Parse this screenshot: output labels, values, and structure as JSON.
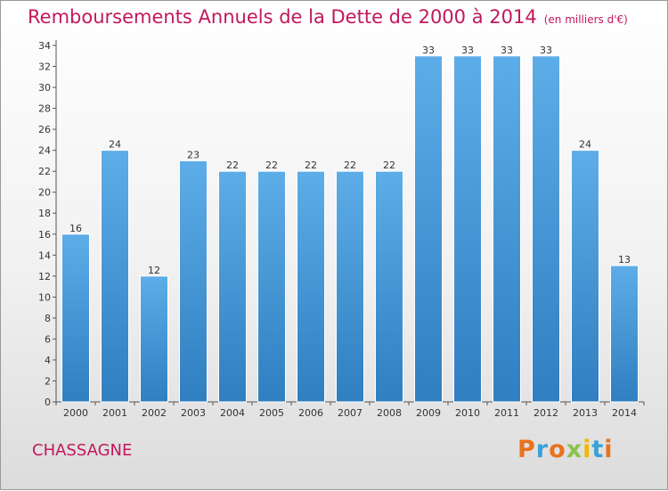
{
  "title": "Remboursements Annuels de la Dette de 2000 à 2014",
  "subtitle": "(en milliers d'€)",
  "commune": "CHASSAGNE",
  "brand": "Proxiti",
  "colors": {
    "title": "#c2185b",
    "bar_top": "#5dade8",
    "bar_bottom": "#2f7fc1",
    "brand_letters": [
      "#e8721c",
      "#3aa0d8",
      "#e8721c",
      "#8bc34a",
      "#f2b705",
      "#3aa0d8",
      "#e8721c"
    ]
  },
  "chart_data": {
    "type": "bar",
    "categories": [
      "2000",
      "2001",
      "2002",
      "2003",
      "2004",
      "2005",
      "2006",
      "2007",
      "2008",
      "2009",
      "2010",
      "2011",
      "2012",
      "2013",
      "2014"
    ],
    "values": [
      16,
      24,
      12,
      23,
      22,
      22,
      22,
      22,
      22,
      33,
      33,
      33,
      33,
      24,
      13
    ],
    "ylim": [
      0,
      34
    ],
    "yticks": [
      0,
      2,
      4,
      6,
      8,
      10,
      12,
      14,
      16,
      18,
      20,
      22,
      24,
      26,
      28,
      30,
      32,
      34
    ],
    "grid": false,
    "data_labels": true
  }
}
